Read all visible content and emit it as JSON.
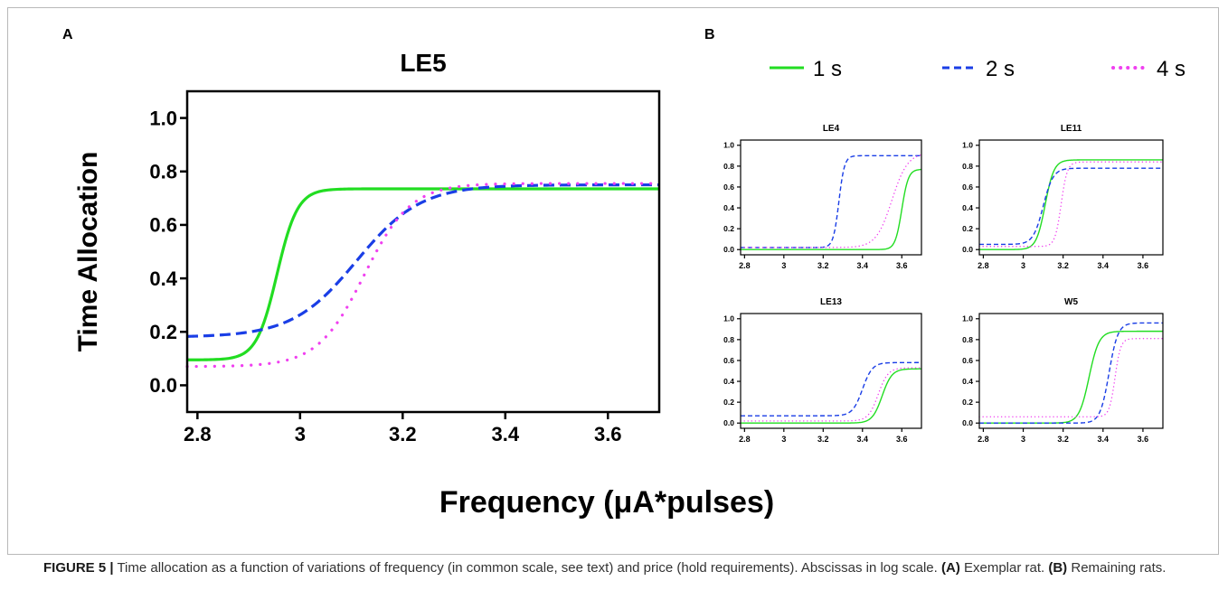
{
  "panel_a": {
    "letter": "A",
    "chart_data": {
      "type": "line",
      "title": "LE5",
      "xlabel": "Frequency (μA*pulses)",
      "ylabel": "Time Allocation",
      "xlim": [
        2.78,
        3.7
      ],
      "ylim": [
        -0.1,
        1.1
      ],
      "xticks": [
        2.8,
        3.0,
        3.2,
        3.4,
        3.6
      ],
      "xtick_labels": [
        "2.8",
        "3",
        "3.2",
        "3.4",
        "3.6"
      ],
      "yticks": [
        0.0,
        0.2,
        0.4,
        0.6,
        0.8,
        1.0
      ],
      "ytick_labels": [
        "0.0",
        "0.2",
        "0.4",
        "0.6",
        "0.8",
        "1.0"
      ],
      "grid": false,
      "series": [
        {
          "name": "1 s",
          "color": "#22dd22",
          "style": "solid",
          "min": 0.095,
          "max": 0.735,
          "x50": 2.955,
          "slope": 50
        },
        {
          "name": "2 s",
          "color": "#1a3ee6",
          "style": "dashed",
          "min": 0.18,
          "max": 0.75,
          "x50": 3.11,
          "slope": 16
        },
        {
          "name": "4 s",
          "color": "#f040f0",
          "style": "dotted",
          "min": 0.07,
          "max": 0.755,
          "x50": 3.125,
          "slope": 22
        }
      ]
    }
  },
  "panel_b": {
    "letter": "B",
    "legend": [
      {
        "label": "1 s",
        "color": "#22dd22",
        "style": "solid"
      },
      {
        "label": "2 s",
        "color": "#1a3ee6",
        "style": "dashed"
      },
      {
        "label": "4 s",
        "color": "#f040f0",
        "style": "dotted"
      }
    ],
    "chart_data": [
      {
        "type": "line",
        "title": "LE4",
        "xlim": [
          2.78,
          3.7
        ],
        "ylim": [
          -0.05,
          1.05
        ],
        "xticks": [
          2.8,
          3.0,
          3.2,
          3.4,
          3.6
        ],
        "xtick_labels": [
          "2.8",
          "3",
          "3.2",
          "3.4",
          "3.6"
        ],
        "yticks": [
          0.0,
          0.2,
          0.4,
          0.6,
          0.8,
          1.0
        ],
        "ytick_labels": [
          "0.0",
          "0.2",
          "0.4",
          "0.6",
          "0.8",
          "1.0"
        ],
        "series": [
          {
            "name": "1 s",
            "min": 0.0,
            "max": 0.77,
            "x50": 3.6,
            "slope": 60
          },
          {
            "name": "2 s",
            "min": 0.02,
            "max": 0.9,
            "x50": 3.28,
            "slope": 70
          },
          {
            "name": "4 s",
            "min": 0.02,
            "max": 0.93,
            "x50": 3.55,
            "slope": 25
          }
        ]
      },
      {
        "type": "line",
        "title": "LE11",
        "xlim": [
          2.78,
          3.7
        ],
        "ylim": [
          -0.05,
          1.05
        ],
        "xticks": [
          2.8,
          3.0,
          3.2,
          3.4,
          3.6
        ],
        "xtick_labels": [
          "2.8",
          "3",
          "3.2",
          "3.4",
          "3.6"
        ],
        "yticks": [
          0.0,
          0.2,
          0.4,
          0.6,
          0.8,
          1.0
        ],
        "ytick_labels": [
          "0.0",
          "0.2",
          "0.4",
          "0.6",
          "0.8",
          "1.0"
        ],
        "series": [
          {
            "name": "1 s",
            "min": 0.0,
            "max": 0.86,
            "x50": 3.11,
            "slope": 45
          },
          {
            "name": "2 s",
            "min": 0.05,
            "max": 0.78,
            "x50": 3.1,
            "slope": 40
          },
          {
            "name": "4 s",
            "min": 0.03,
            "max": 0.84,
            "x50": 3.19,
            "slope": 65
          }
        ]
      },
      {
        "type": "line",
        "title": "LE13",
        "xlim": [
          2.78,
          3.7
        ],
        "ylim": [
          -0.05,
          1.05
        ],
        "xticks": [
          2.8,
          3.0,
          3.2,
          3.4,
          3.6
        ],
        "xtick_labels": [
          "2.8",
          "3",
          "3.2",
          "3.4",
          "3.6"
        ],
        "yticks": [
          0.0,
          0.2,
          0.4,
          0.6,
          0.8,
          1.0
        ],
        "ytick_labels": [
          "0.0",
          "0.2",
          "0.4",
          "0.6",
          "0.8",
          "1.0"
        ],
        "series": [
          {
            "name": "1 s",
            "min": 0.0,
            "max": 0.52,
            "x50": 3.5,
            "slope": 40
          },
          {
            "name": "2 s",
            "min": 0.07,
            "max": 0.58,
            "x50": 3.4,
            "slope": 40
          },
          {
            "name": "4 s",
            "min": 0.02,
            "max": 0.53,
            "x50": 3.48,
            "slope": 40
          }
        ]
      },
      {
        "type": "line",
        "title": "W5",
        "xlim": [
          2.78,
          3.7
        ],
        "ylim": [
          -0.05,
          1.05
        ],
        "xticks": [
          2.8,
          3.0,
          3.2,
          3.4,
          3.6
        ],
        "xtick_labels": [
          "2.8",
          "3",
          "3.2",
          "3.4",
          "3.6"
        ],
        "yticks": [
          0.0,
          0.2,
          0.4,
          0.6,
          0.8,
          1.0
        ],
        "ytick_labels": [
          "0.0",
          "0.2",
          "0.4",
          "0.6",
          "0.8",
          "1.0"
        ],
        "series": [
          {
            "name": "1 s",
            "min": 0.0,
            "max": 0.88,
            "x50": 3.33,
            "slope": 40
          },
          {
            "name": "2 s",
            "min": 0.0,
            "max": 0.96,
            "x50": 3.43,
            "slope": 45
          },
          {
            "name": "4 s",
            "min": 0.06,
            "max": 0.81,
            "x50": 3.46,
            "slope": 70
          }
        ]
      }
    ]
  },
  "shared_xlabel": "Frequency (μA*pulses)",
  "caption": {
    "label": "FIGURE 5 |",
    "text": " Time allocation as a function of variations of frequency (in common scale, see text) and price (hold requirements). Abscissas in log scale. ",
    "a_ref": "(A)",
    "a_text": " Exemplar rat. ",
    "b_ref": "(B)",
    "b_text": " Remaining rats."
  }
}
